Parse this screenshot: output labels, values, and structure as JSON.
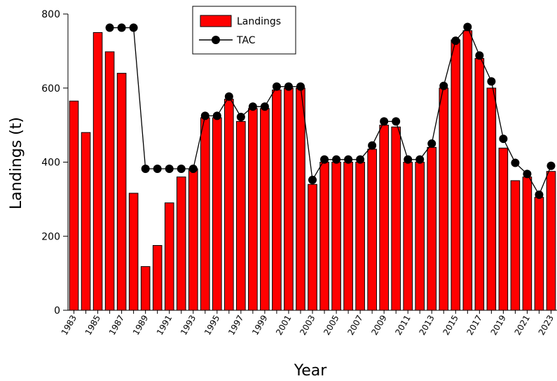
{
  "chart_data": {
    "type": "bar",
    "xlabel": "Year",
    "ylabel": "Landings (t)",
    "ylim": [
      0,
      800
    ],
    "yticks": [
      0,
      200,
      400,
      600,
      800
    ],
    "grid": false,
    "legend_position": "top-center",
    "categories": [
      1983,
      1984,
      1985,
      1986,
      1987,
      1988,
      1989,
      1990,
      1991,
      1992,
      1993,
      1994,
      1995,
      1996,
      1997,
      1998,
      1999,
      2000,
      2001,
      2002,
      2003,
      2004,
      2005,
      2006,
      2007,
      2008,
      2009,
      2010,
      2011,
      2012,
      2013,
      2014,
      2015,
      2016,
      2017,
      2018,
      2019,
      2020,
      2021,
      2022,
      2023
    ],
    "xtick_labels": [
      "1983",
      "1985",
      "1987",
      "1989",
      "1991",
      "1993",
      "1995",
      "1997",
      "1999",
      "2001",
      "2003",
      "2005",
      "2007",
      "2009",
      "2011",
      "2013",
      "2015",
      "2017",
      "2019",
      "2021",
      "2023"
    ],
    "series": [
      {
        "name": "Landings",
        "kind": "bar",
        "color": "#ff0000",
        "values": [
          565,
          480,
          750,
          698,
          640,
          316,
          118,
          175,
          290,
          360,
          382,
          520,
          520,
          570,
          510,
          545,
          545,
          595,
          600,
          600,
          340,
          400,
          400,
          400,
          400,
          435,
          500,
          495,
          400,
          400,
          440,
          600,
          730,
          755,
          680,
          600,
          438,
          350,
          360,
          305,
          375
        ]
      },
      {
        "name": "TAC",
        "kind": "line",
        "color": "#000000",
        "values": [
          null,
          null,
          null,
          763,
          763,
          763,
          382,
          382,
          382,
          382,
          382,
          525,
          525,
          577,
          522,
          550,
          550,
          604,
          604,
          604,
          352,
          407,
          407,
          407,
          407,
          445,
          510,
          510,
          407,
          407,
          450,
          606,
          728,
          765,
          688,
          618,
          463,
          398,
          368,
          312,
          390
        ]
      }
    ]
  }
}
